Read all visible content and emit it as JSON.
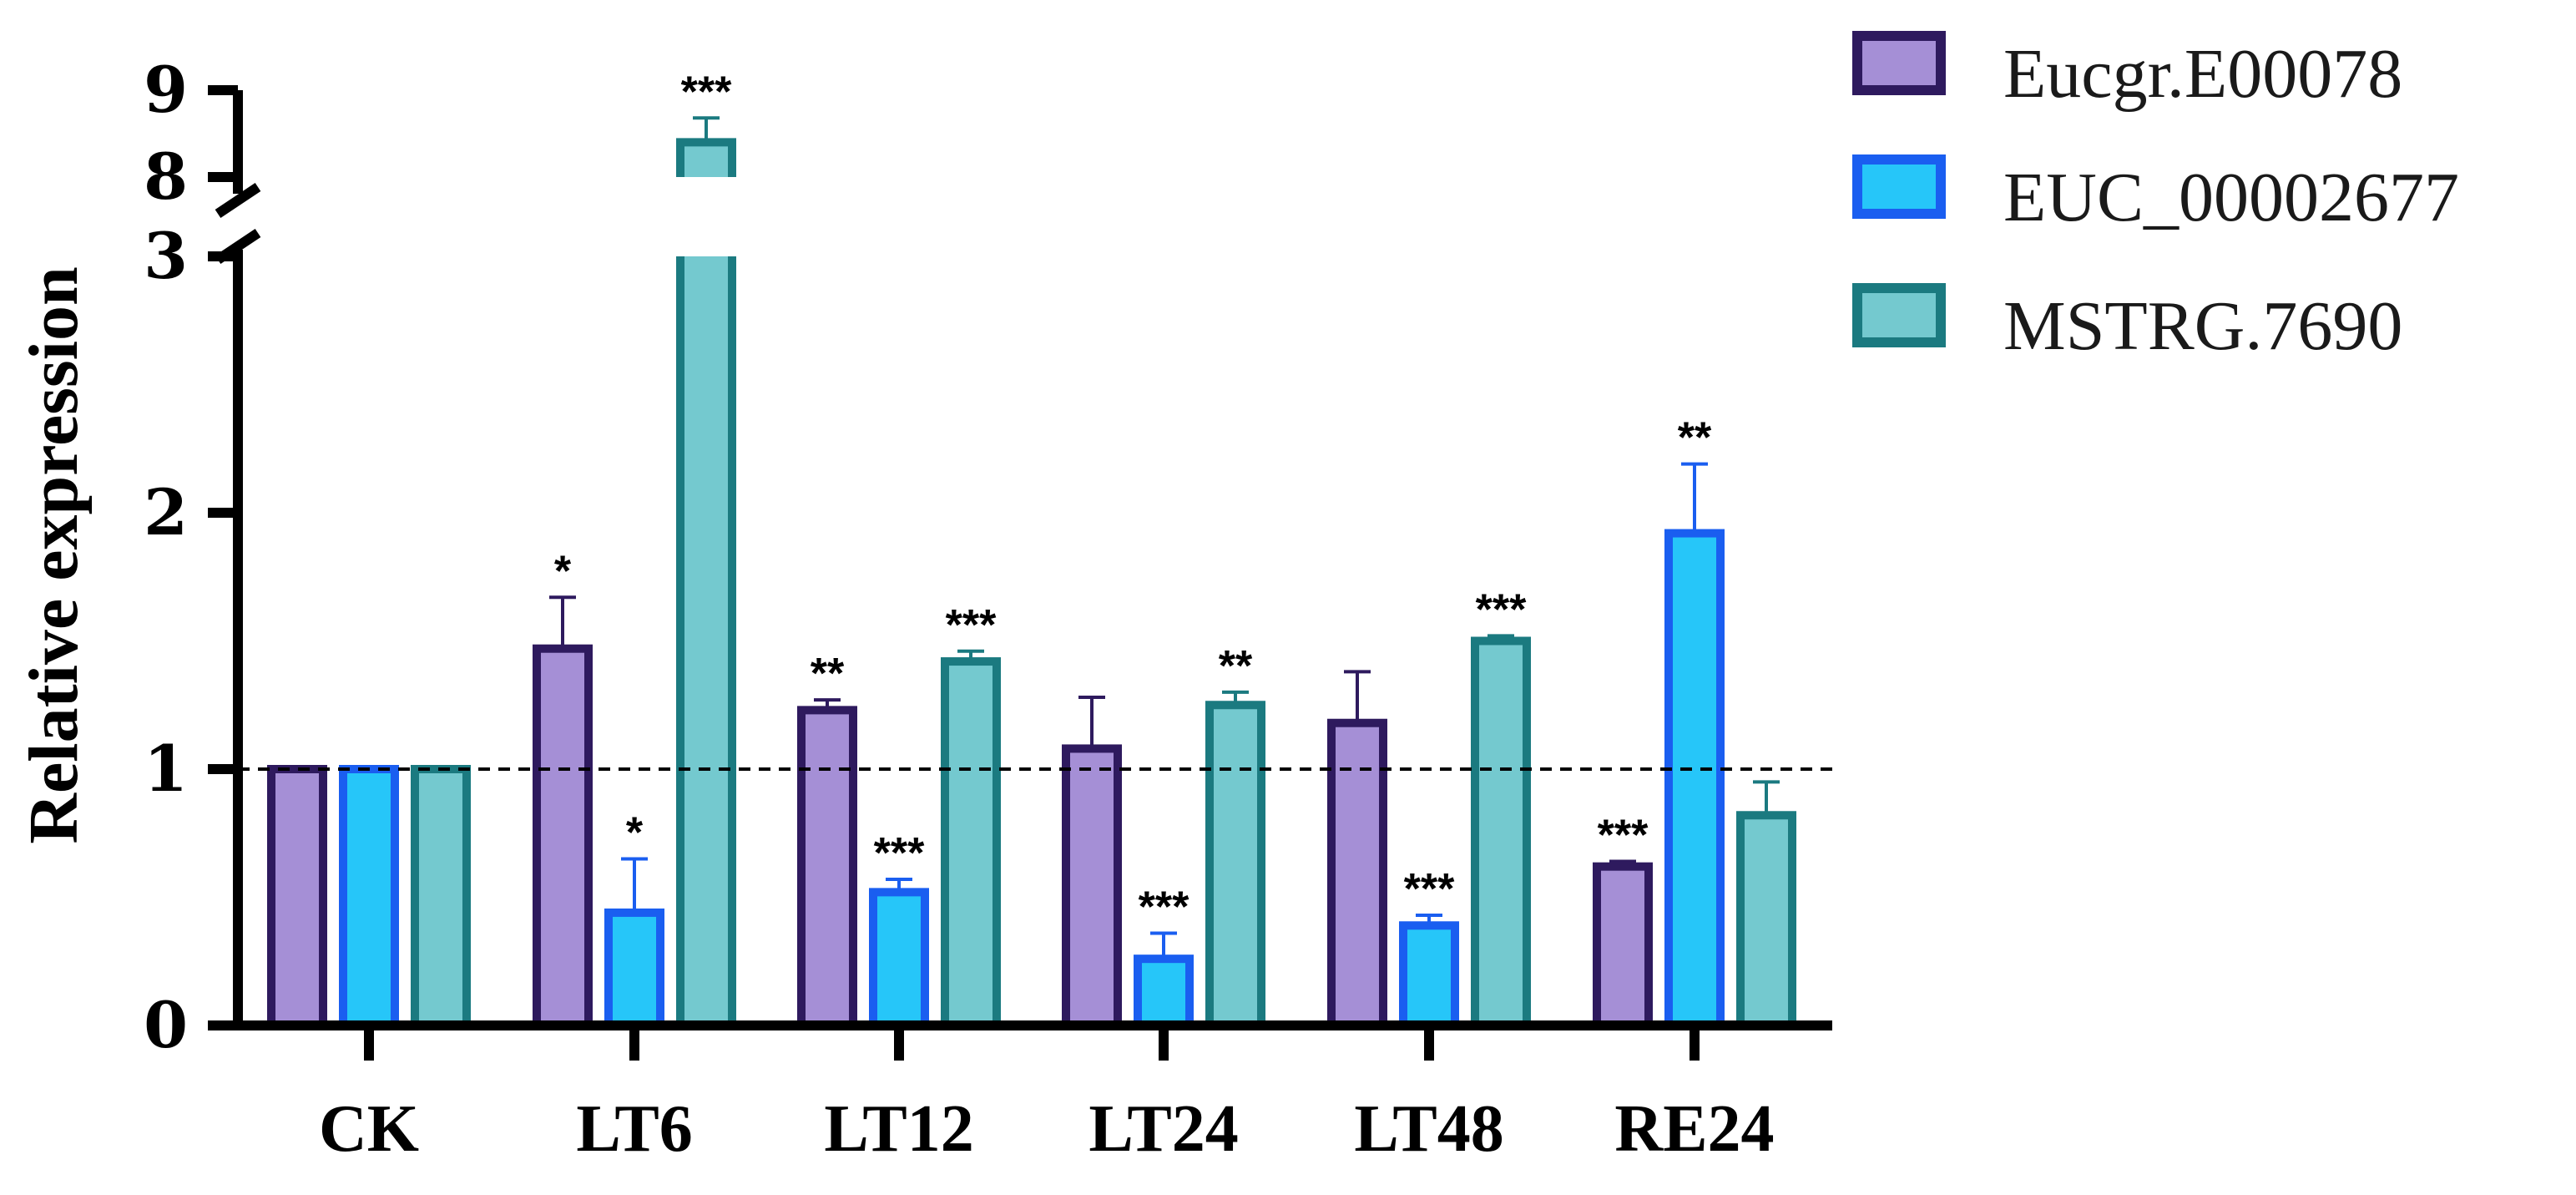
{
  "chart_data": {
    "type": "bar",
    "title": "",
    "xlabel": "",
    "ylabel": "Relative expression",
    "categories": [
      "CK",
      "LT6",
      "LT12",
      "LT24",
      "LT48",
      "RE24"
    ],
    "series": [
      {
        "name": "Eucgr.E00078",
        "fill": "#a58fd6",
        "stroke": "#2e1a5e",
        "values": [
          1.0,
          1.47,
          1.23,
          1.08,
          1.18,
          0.62
        ],
        "errors": [
          0.0,
          0.2,
          0.04,
          0.2,
          0.2,
          0.02
        ],
        "sig": [
          "",
          "*",
          "**",
          "",
          "",
          "***"
        ]
      },
      {
        "name": "EUC_00002677",
        "fill": "#26c6f9",
        "stroke": "#1a5ef0",
        "values": [
          1.0,
          0.44,
          0.52,
          0.26,
          0.39,
          1.92
        ],
        "errors": [
          0.0,
          0.21,
          0.05,
          0.1,
          0.04,
          0.27
        ],
        "sig": [
          "",
          "*",
          "***",
          "***",
          "***",
          "**"
        ]
      },
      {
        "name": "MSTRG.7690",
        "fill": "#74c9cf",
        "stroke": "#1b7a80",
        "values": [
          1.0,
          8.4,
          1.42,
          1.25,
          1.5,
          0.82
        ],
        "errors": [
          0.0,
          0.28,
          0.04,
          0.05,
          0.02,
          0.13
        ],
        "sig": [
          "",
          "***",
          "***",
          "**",
          "***",
          ""
        ]
      }
    ],
    "ylim": [
      0,
      9
    ],
    "y_break": [
      3,
      8
    ],
    "yticks": [
      0,
      1,
      2,
      3,
      8,
      9
    ],
    "reference_line": 1,
    "legend_position": "top-right"
  }
}
